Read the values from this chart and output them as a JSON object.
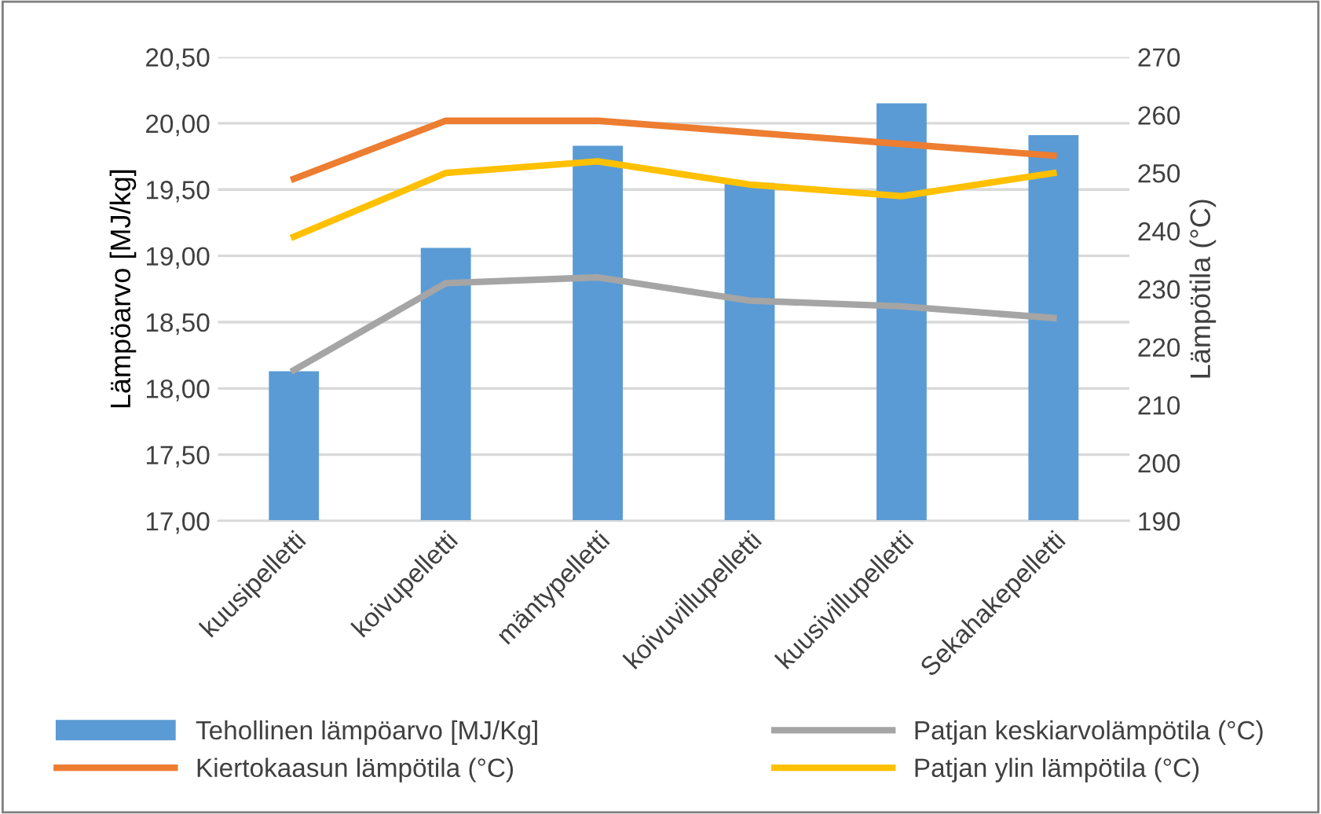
{
  "chart_data": {
    "type": "bar",
    "ylabel": "Lämpöarvo [MJ/kg]",
    "y2label": "Lämpötila (°C)",
    "categories": [
      "kuusipelletti",
      "koivupelletti",
      "mäntypelletti",
      "koivuvillupelletti",
      "kuusivillupelletti",
      "Sekahakepelletti"
    ],
    "series": [
      {
        "name": "Tehollinen lämpöarvo [MJ/Kg]",
        "color": "#5b9bd5",
        "values": [
          18.13,
          19.06,
          19.83,
          19.55,
          20.15,
          19.91
        ]
      },
      {
        "name": "Kiertokaasun lämpötila (°C)",
        "type": "line",
        "axis": "y2",
        "color": "#ed7d31",
        "values": [
          249,
          259,
          259,
          257,
          255,
          253
        ]
      },
      {
        "name": "Patjan keskiarvolämpötila (°C)",
        "type": "line",
        "axis": "y2",
        "color": "#a5a5a5",
        "values": [
          216,
          231,
          232,
          228,
          227,
          225
        ]
      },
      {
        "name": "Patjan ylin lämpötila (°C)",
        "type": "line",
        "axis": "y2",
        "color": "#ffc000",
        "values": [
          239,
          250,
          252,
          248,
          246,
          250
        ]
      }
    ],
    "ylim": [
      17,
      20.5
    ],
    "yticks": [
      {
        "value": 17,
        "label": "17,00"
      },
      {
        "value": 17.5,
        "label": "17,50"
      },
      {
        "value": 18,
        "label": "18,00"
      },
      {
        "value": 18.5,
        "label": "18,50"
      },
      {
        "value": 19,
        "label": "19,00"
      },
      {
        "value": 19.5,
        "label": "19,50"
      },
      {
        "value": 20,
        "label": "20,00"
      },
      {
        "value": 20.5,
        "label": "20,50"
      }
    ],
    "y2lim": [
      190,
      270
    ],
    "y2ticks": [
      190,
      200,
      210,
      220,
      230,
      240,
      250,
      260,
      270
    ],
    "grid": "y",
    "legend": "bottom"
  }
}
